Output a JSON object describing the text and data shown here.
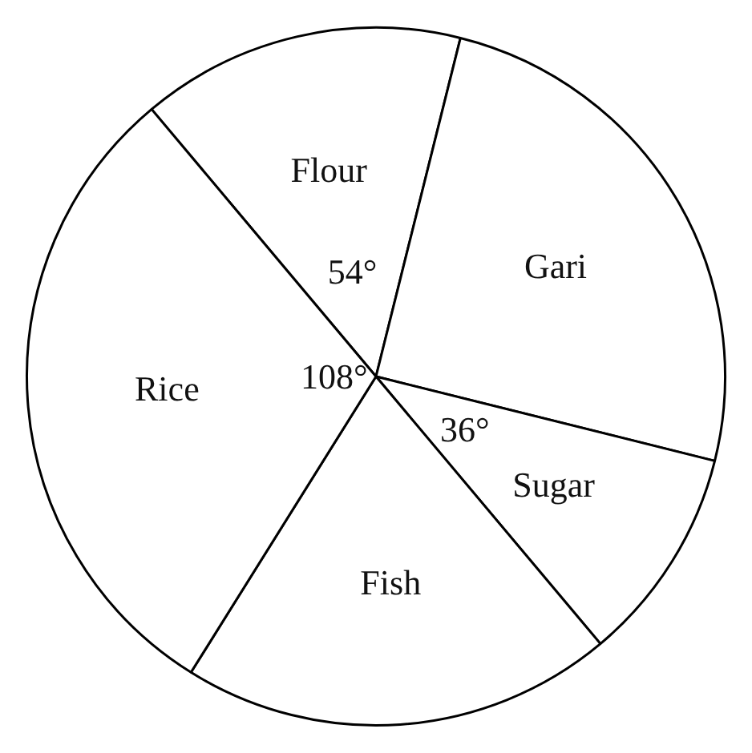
{
  "chart_data": {
    "type": "pie",
    "categories": [
      "Flour",
      "Gari",
      "Sugar",
      "Fish",
      "Rice"
    ],
    "values": [
      54,
      90,
      36,
      72,
      108
    ],
    "colors": [
      "#ffffff",
      "#ffffff",
      "#ffffff",
      "#ffffff",
      "#ffffff"
    ],
    "value_labels": [
      "54°",
      null,
      "36°",
      null,
      "108°"
    ],
    "legend": false
  }
}
